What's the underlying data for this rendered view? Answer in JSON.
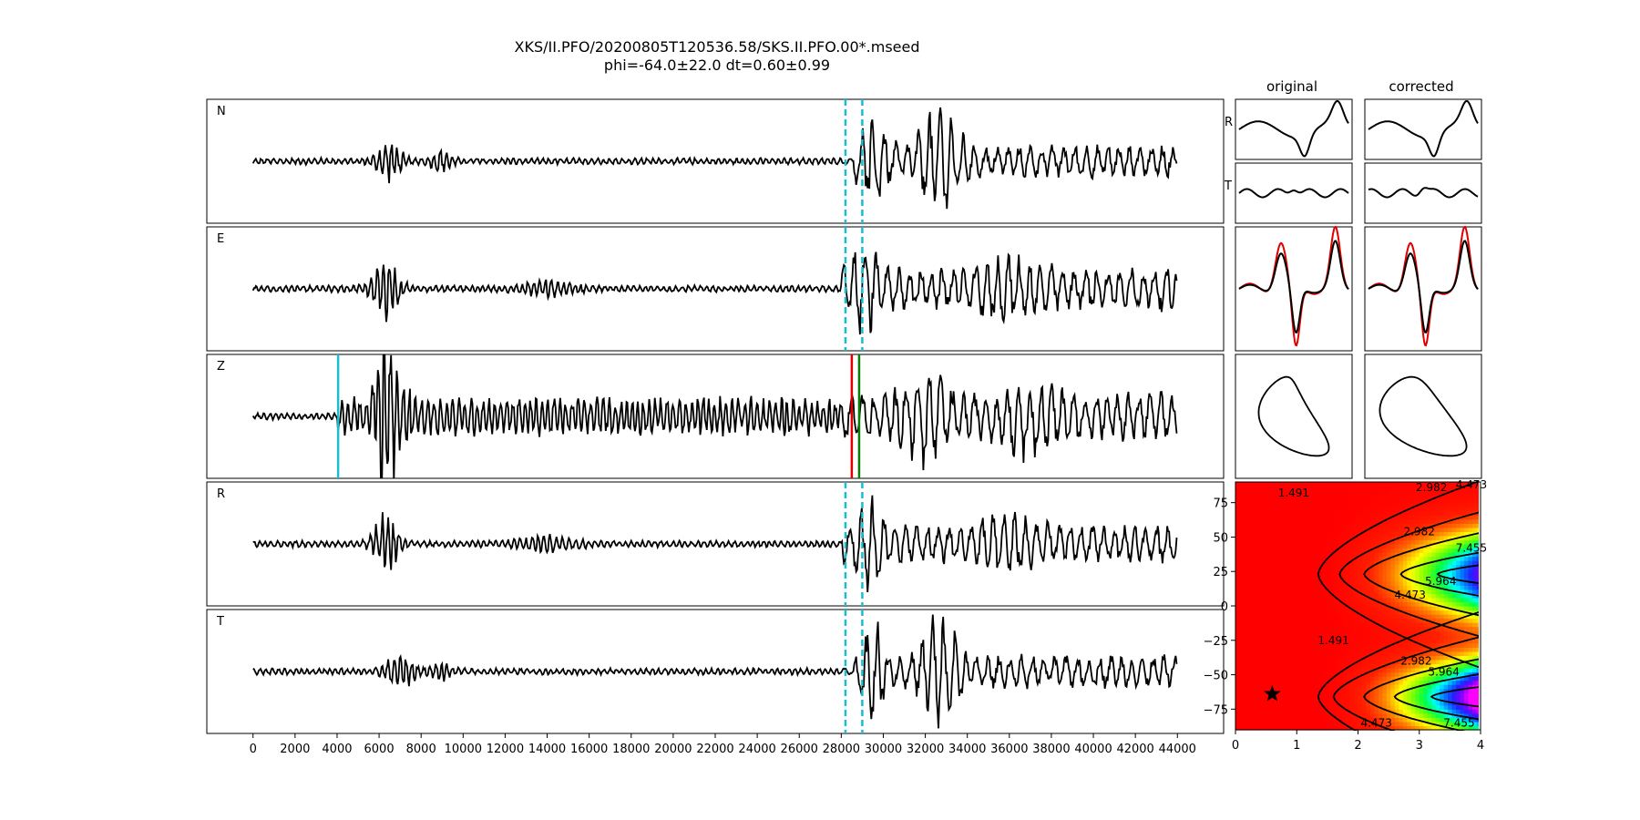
{
  "figure": {
    "title_line1": "XKS/II.PFO/20200805T120536.58/SKS.II.PFO.00*.mseed",
    "title_line2": "phi=-64.0±22.0 dt=0.60±0.99",
    "col_titles": [
      "original",
      "corrected"
    ],
    "side_labels": [
      "R",
      "T"
    ]
  },
  "chart_data": [
    {
      "type": "line",
      "name": "seismogram-traces",
      "traces": [
        "N",
        "E",
        "Z",
        "R",
        "T"
      ],
      "xlim": [
        -2200,
        46200
      ],
      "x_ticks": [
        0,
        2000,
        4000,
        6000,
        8000,
        10000,
        12000,
        14000,
        16000,
        18000,
        20000,
        22000,
        24000,
        26000,
        28000,
        30000,
        32000,
        34000,
        36000,
        38000,
        40000,
        42000,
        44000
      ],
      "x_range": [
        0,
        44000
      ],
      "window_markers": {
        "start": 28200,
        "end": 29000,
        "color": "#17becf",
        "traces": [
          "N",
          "E",
          "R",
          "T"
        ]
      },
      "phase_markers": [
        {
          "x": 4050,
          "color": "#17becf",
          "trace": "Z"
        },
        {
          "x": 28500,
          "color": "#e00000",
          "trace": "Z"
        },
        {
          "x": 28850,
          "color": "#0a7d0a",
          "trace": "Z"
        }
      ]
    },
    {
      "type": "line",
      "name": "particle-motion-panels",
      "panels": [
        "R",
        "T",
        "overlay",
        "particle"
      ],
      "colors": {
        "trace": "#000000",
        "overlay": "#e00000"
      }
    },
    {
      "type": "heatmap",
      "name": "misfit-grid",
      "xlim": [
        0,
        4
      ],
      "ylim": [
        -90,
        90
      ],
      "x_ticks": [
        0,
        1,
        2,
        3,
        4
      ],
      "y_ticks": [
        -75,
        -50,
        -25,
        0,
        25,
        50,
        75
      ],
      "contour_labels": [
        "1.491",
        "2.982",
        "4.473",
        "5.964",
        "7.455"
      ],
      "best": {
        "dt": 0.6,
        "phi": -64.0
      },
      "colormap": "gist_rainbow_r"
    }
  ]
}
